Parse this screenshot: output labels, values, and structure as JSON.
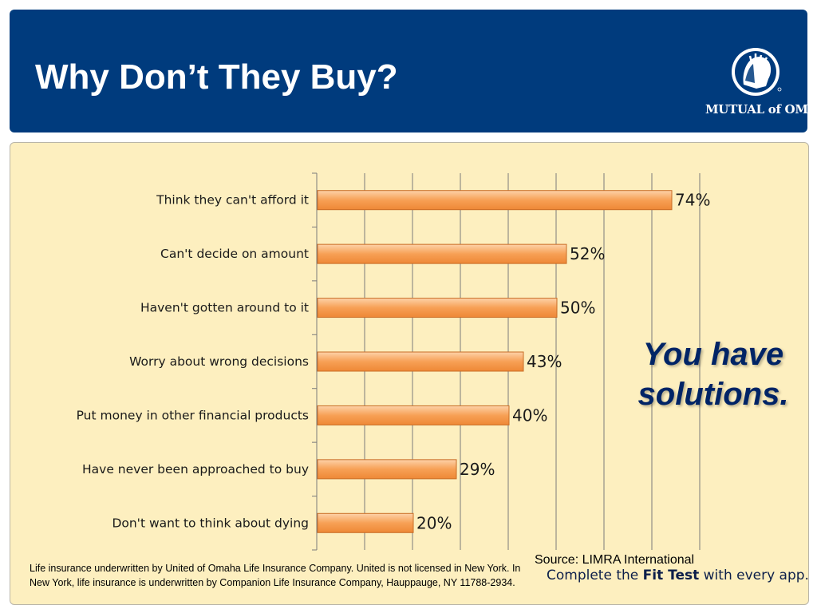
{
  "header": {
    "title": "Why Don’t They Buy?",
    "logo_text": "MUTUAL of OMAHA",
    "background": "#003b7d"
  },
  "panel": {
    "background": "#fdefbf"
  },
  "chart_data": {
    "type": "bar",
    "orientation": "horizontal",
    "categories": [
      "Think they can't afford it",
      "Can't decide on amount",
      "Haven't gotten around to it",
      "Worry about wrong decisions",
      "Put money in other financial products",
      "Have never been approached to buy",
      "Don't want to think about dying"
    ],
    "values": [
      74,
      52,
      50,
      43,
      40,
      29,
      20
    ],
    "value_labels": [
      "74%",
      "52%",
      "50%",
      "43%",
      "40%",
      "29%",
      "20%"
    ],
    "xlim": [
      0,
      80
    ],
    "grid": true,
    "bar_color": "#f7a055",
    "bar_edge_color": "#c96d26",
    "title": "",
    "xlabel": "",
    "ylabel": ""
  },
  "callout": {
    "line1": "You have",
    "line2": "solutions.",
    "color": "#002466"
  },
  "footer": {
    "source": "Source: LIMRA International",
    "fit_prefix": "Complete the ",
    "fit_bold": "Fit Test",
    "fit_suffix": " with every app.",
    "disclaimer": "Life insurance underwritten by United of Omaha Life Insurance Company. United is not licensed in New York. In New York, life insurance is underwritten by Companion Life Insurance Company, Hauppauge, NY 11788-2934."
  }
}
